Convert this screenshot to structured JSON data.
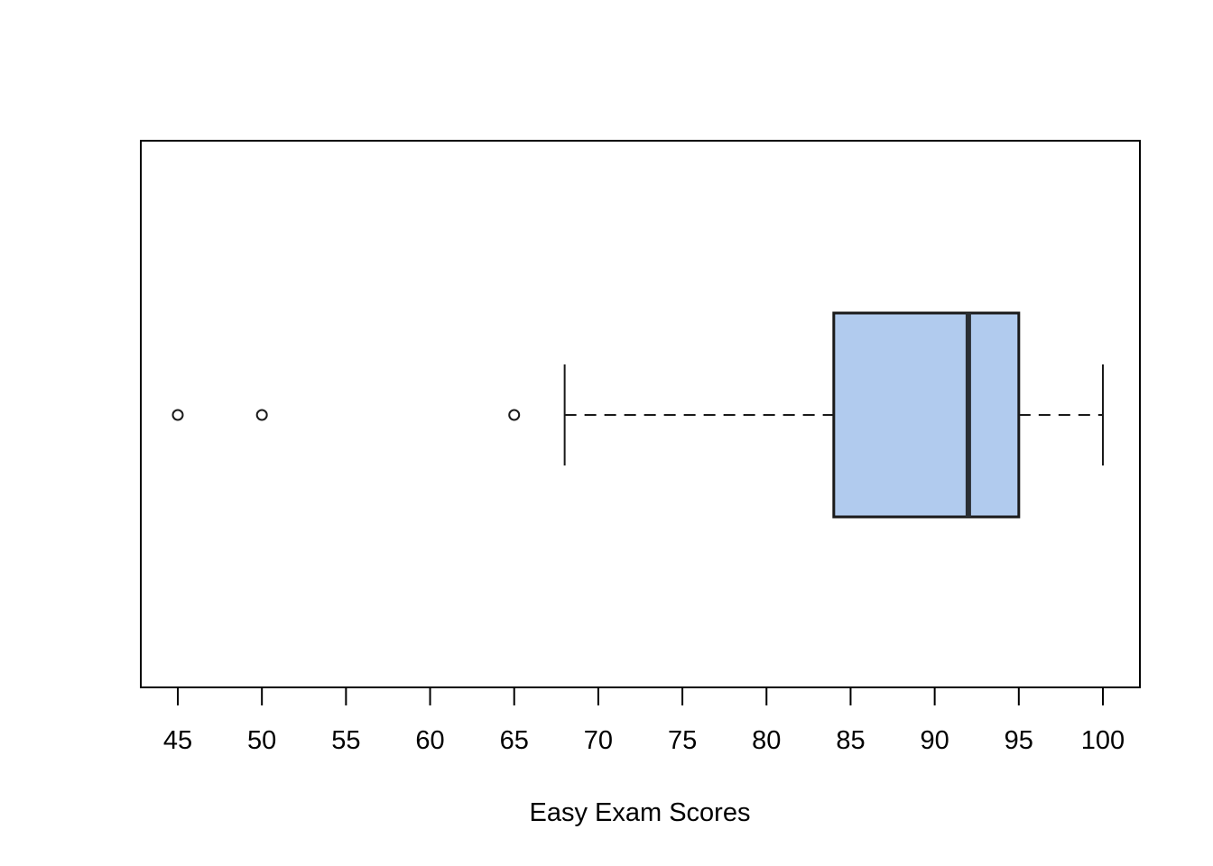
{
  "figure": {
    "background": "#ffffff"
  },
  "chart_data": {
    "type": "boxplot",
    "orientation": "horizontal",
    "title": "",
    "xlabel": "Easy Exam Scores",
    "ylabel": "",
    "x_ticks": [
      45,
      50,
      55,
      60,
      65,
      70,
      75,
      80,
      85,
      90,
      95,
      100
    ],
    "xlim": [
      42.8,
      102.2
    ],
    "grid": false,
    "legend": "none",
    "series": [
      {
        "name": "Easy Exam Scores",
        "q1": 84,
        "median": 92,
        "q3": 95,
        "whisker_low": 68,
        "whisker_high": 100,
        "outliers": [
          45,
          50,
          65
        ]
      }
    ],
    "colors": {
      "box_fill": "#b1cbee",
      "box_border": "#1a1a1a",
      "median_line": "#2a2e33",
      "whisker_line": "#1a1a1a",
      "outlier_stroke": "#1a1a1a",
      "axis_line": "#000000",
      "tick_label": "#000000"
    }
  }
}
